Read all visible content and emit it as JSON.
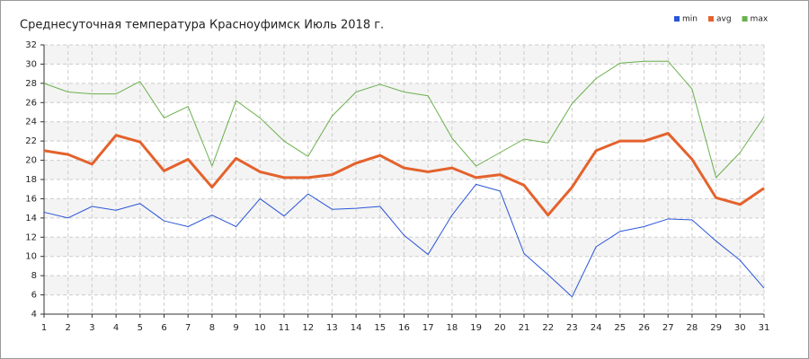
{
  "chart_data": {
    "type": "line",
    "title": "Среднесуточная температура Красноуфимск  Июль 2018 г.",
    "x": [
      1,
      2,
      3,
      4,
      5,
      6,
      7,
      8,
      9,
      10,
      11,
      12,
      13,
      14,
      15,
      16,
      17,
      18,
      19,
      20,
      21,
      22,
      23,
      24,
      25,
      26,
      27,
      28,
      29,
      30,
      31
    ],
    "xlim": [
      1,
      31
    ],
    "xticks": [
      1,
      2,
      3,
      4,
      5,
      6,
      7,
      8,
      9,
      10,
      11,
      12,
      13,
      14,
      15,
      16,
      17,
      18,
      19,
      20,
      21,
      22,
      23,
      24,
      25,
      26,
      27,
      28,
      29,
      30,
      31
    ],
    "ylim": [
      4,
      32
    ],
    "yticks": [
      4,
      6,
      8,
      10,
      12,
      14,
      16,
      18,
      20,
      22,
      24,
      26,
      28,
      30,
      32
    ],
    "grid": true,
    "legend": "top-right",
    "series": [
      {
        "name": "min",
        "color": "#2a55d8",
        "width": 1,
        "values": [
          14.6,
          14.0,
          15.2,
          14.8,
          15.5,
          13.7,
          13.1,
          14.3,
          13.1,
          16.0,
          14.2,
          16.5,
          14.9,
          15.0,
          15.2,
          12.2,
          10.2,
          14.3,
          17.5,
          16.8,
          10.3,
          8.1,
          5.8,
          11.0,
          12.6,
          13.1,
          13.9,
          13.8,
          11.6,
          9.6,
          6.7
        ]
      },
      {
        "name": "avg",
        "color": "#e4622c",
        "width": 3,
        "values": [
          21.0,
          20.6,
          19.6,
          22.6,
          21.9,
          18.9,
          20.1,
          17.2,
          20.2,
          18.8,
          18.2,
          18.2,
          18.5,
          19.7,
          20.5,
          19.2,
          18.8,
          19.2,
          18.2,
          18.5,
          17.4,
          14.3,
          17.2,
          21.0,
          22.0,
          22.0,
          22.8,
          20.1,
          16.1,
          15.4,
          17.1
        ]
      },
      {
        "name": "max",
        "color": "#6ab04c",
        "width": 1,
        "values": [
          28.0,
          27.1,
          26.9,
          26.9,
          28.2,
          24.4,
          25.6,
          19.4,
          26.2,
          24.4,
          22.0,
          20.4,
          24.6,
          27.1,
          27.9,
          27.1,
          26.7,
          22.3,
          19.4,
          20.8,
          22.2,
          21.8,
          25.9,
          28.5,
          30.1,
          30.3,
          30.3,
          27.4,
          18.2,
          20.8,
          24.5
        ]
      }
    ]
  }
}
